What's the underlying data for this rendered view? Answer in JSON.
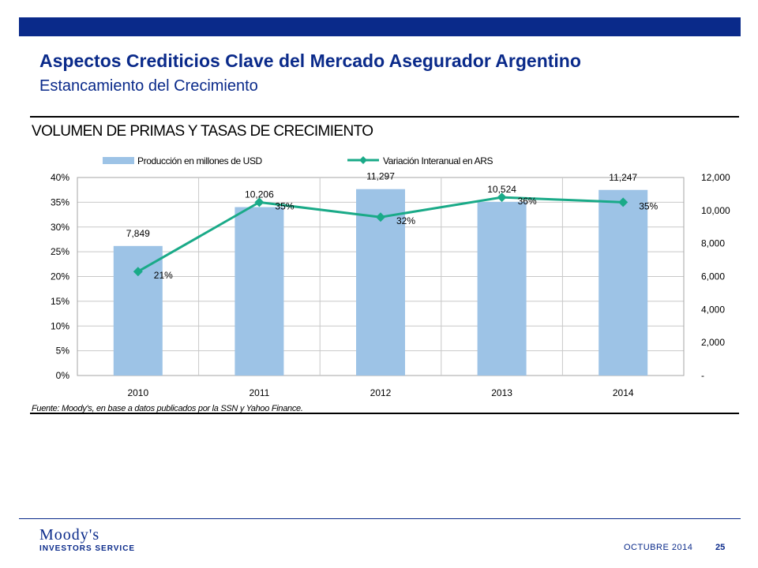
{
  "header": {
    "title": "Aspectos Crediticios Clave del Mercado Asegurador Argentino",
    "subtitle": "Estancamiento del Crecimiento"
  },
  "chart_title": "VOLUMEN DE PRIMAS Y TASAS DE CRECIMIENTO",
  "source_note": "Fuente: Moody's, en base a datos publicados por la SSN y Yahoo Finance.",
  "footer": {
    "logo_line1": "Moody's",
    "logo_line2": "INVESTORS SERVICE",
    "date": "OCTUBRE 2014",
    "page": "25"
  },
  "colors": {
    "brand": "#0a2a8a",
    "bar": "#9dc3e6",
    "line": "#1aaa88"
  },
  "chart_data": {
    "type": "bar",
    "categories": [
      "2010",
      "2011",
      "2012",
      "2013",
      "2014"
    ],
    "series": [
      {
        "name": "Producción en millones de USD",
        "type": "bar",
        "axis": "right",
        "values": [
          7849,
          10206,
          11297,
          10524,
          11247
        ],
        "labels": [
          "7,849",
          "10,206",
          "11,297",
          "10,524",
          "11,247"
        ]
      },
      {
        "name": "Variación Interanual en ARS",
        "type": "line",
        "axis": "left",
        "values": [
          21,
          35,
          32,
          36,
          35
        ],
        "labels": [
          "21%",
          "35%",
          "32%",
          "36%",
          "35%"
        ]
      }
    ],
    "y_left": {
      "range": [
        0,
        40
      ],
      "ticks": [
        0,
        5,
        10,
        15,
        20,
        25,
        30,
        35,
        40
      ],
      "tick_labels": [
        "0%",
        "5%",
        "10%",
        "15%",
        "20%",
        "25%",
        "30%",
        "35%",
        "40%"
      ]
    },
    "y_right": {
      "range": [
        0,
        12000
      ],
      "ticks": [
        0,
        2000,
        4000,
        6000,
        8000,
        10000,
        12000
      ],
      "tick_labels": [
        "-",
        "2,000",
        "4,000",
        "6,000",
        "8,000",
        "10,000",
        "12,000"
      ]
    },
    "grid": true,
    "legend_position": "top"
  }
}
